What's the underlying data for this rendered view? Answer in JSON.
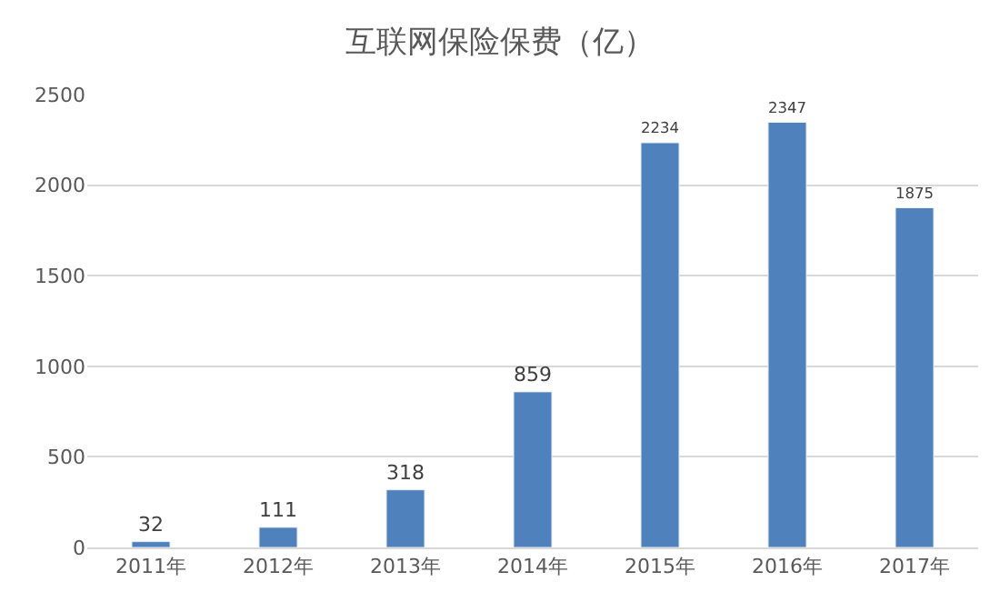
{
  "chart_data": {
    "type": "bar",
    "title": "互联网保险保费（亿）",
    "categories": [
      "2011年",
      "2012年",
      "2013年",
      "2014年",
      "2015年",
      "2016年",
      "2017年"
    ],
    "values": [
      32,
      111,
      318,
      859,
      2234,
      2347,
      1875
    ],
    "color": "#4f81bd",
    "ylim": [
      0,
      2500
    ],
    "yticks": [
      0,
      500,
      1000,
      1500,
      2000,
      2500
    ],
    "grid": "y",
    "data_labels": true
  }
}
